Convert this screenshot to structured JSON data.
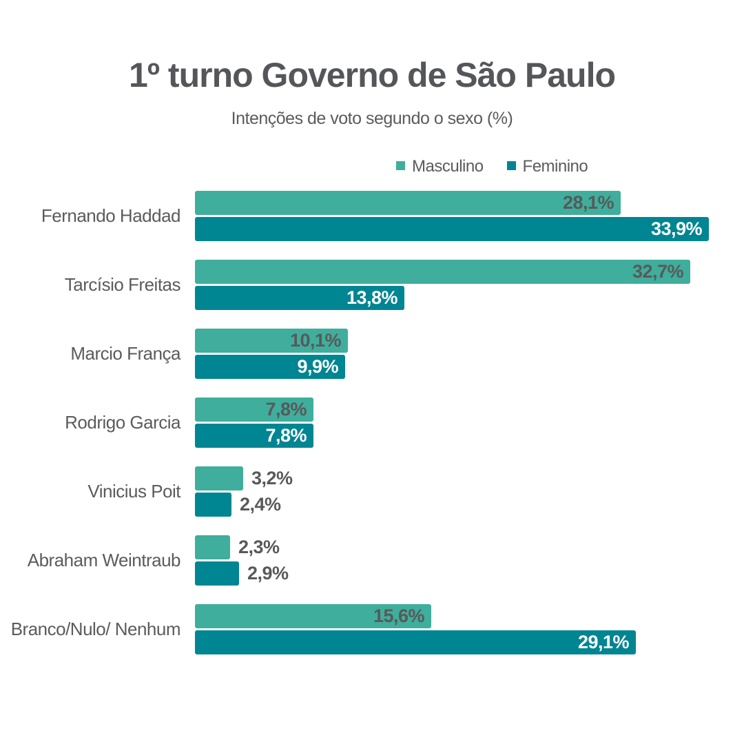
{
  "chart_data": {
    "type": "bar",
    "orientation": "horizontal",
    "title": "1º turno Governo de São Paulo",
    "subtitle": "Intenções de voto segundo o sexo (%)",
    "categories": [
      "Fernando Haddad",
      "Tarcísio Freitas",
      "Marcio França",
      "Rodrigo Garcia",
      "Vinicius Poit",
      "Abraham Weintraub",
      "Branco/Nulo/ Nenhum"
    ],
    "series": [
      {
        "name": "Masculino",
        "color": "#3FAE9C",
        "values": [
          28.1,
          32.7,
          10.1,
          7.8,
          3.2,
          2.3,
          15.6
        ],
        "labels": [
          "28,1%",
          "32,7%",
          "10,1%",
          "7,8%",
          "3,2%",
          "2,3%",
          "15,6%"
        ]
      },
      {
        "name": "Feminino",
        "color": "#008592",
        "values": [
          33.9,
          13.8,
          9.9,
          7.8,
          2.4,
          2.9,
          29.1
        ],
        "labels": [
          "33,9%",
          "13,8%",
          "9,9%",
          "7,8%",
          "2,4%",
          "2,9%",
          "29,1%"
        ]
      }
    ],
    "value_suffix": "%",
    "decimal_separator": ",",
    "xlim": [
      0,
      34
    ],
    "grid": false,
    "legend_position": "top-center",
    "colors": {
      "title_text": "#55565A",
      "axis_text": "#5B5B5B",
      "value_label_on_masculino": "#595959",
      "value_label_on_feminino": "#FFFFFF",
      "value_label_outside": "#595959",
      "background": "#FFFFFF"
    }
  }
}
